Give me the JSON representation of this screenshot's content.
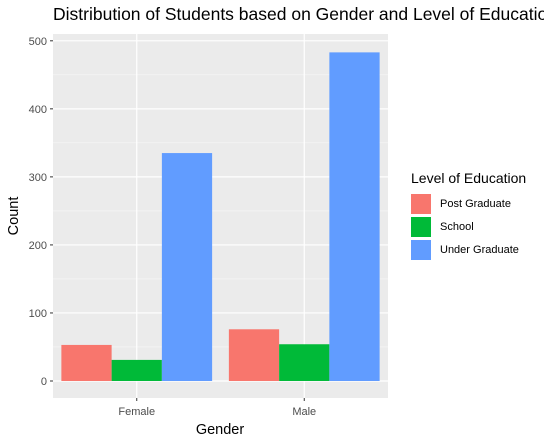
{
  "chart_data": {
    "type": "bar",
    "title": "Distribution of Students based on Gender and Level of Education",
    "xlabel": "Gender",
    "ylabel": "Count",
    "categories": [
      "Female",
      "Male"
    ],
    "series": [
      {
        "name": "Post Graduate",
        "values": [
          53,
          76
        ],
        "color": "#F8766D"
      },
      {
        "name": "School",
        "values": [
          31,
          54
        ],
        "color": "#00BA38"
      },
      {
        "name": "Under Graduate",
        "values": [
          335,
          483
        ],
        "color": "#619CFF"
      }
    ],
    "yticks": [
      0,
      100,
      200,
      300,
      400,
      500
    ],
    "ylim": [
      -25,
      510
    ],
    "grid": true,
    "legend": {
      "title": "Level of Education",
      "position": "right"
    }
  }
}
